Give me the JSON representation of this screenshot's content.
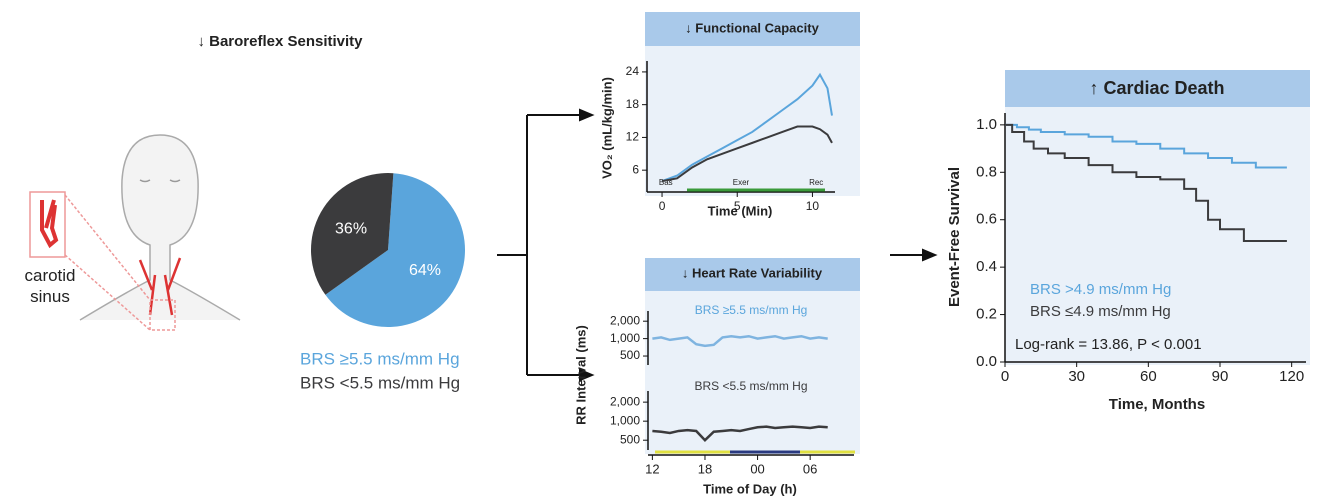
{
  "header": {
    "title": "↓ Baroreflex Sensitivity"
  },
  "illustration": {
    "label": "carotid sinus"
  },
  "chart_data": [
    {
      "type": "pie",
      "categories": [
        "BRS ≥5.5 ms/mm Hg",
        "BRS <5.5 ms/mm Hg"
      ],
      "values": [
        64,
        36
      ],
      "value_labels": [
        "64%",
        "36%"
      ],
      "colors": [
        "#5aa5dc",
        "#3b3b3d"
      ]
    },
    {
      "type": "line",
      "title": "↓ Functional Capacity",
      "x_label": "Time (Min)",
      "y_label": "VO₂ (mL/kg/min)",
      "xlim": [
        -1,
        11.5
      ],
      "xticks": [
        0,
        5,
        10
      ],
      "ylim": [
        2,
        26
      ],
      "yticks": [
        6,
        12,
        18,
        24
      ],
      "phases": [
        "Bas",
        "Exer",
        "Rec"
      ],
      "series": [
        {
          "color": "#5aa5dc",
          "x": [
            0,
            1,
            2,
            3,
            4,
            5,
            6,
            7,
            8,
            9,
            10,
            10.5,
            11,
            11.3
          ],
          "values": [
            4,
            5,
            7,
            8.5,
            10,
            11.5,
            13,
            15,
            17,
            19,
            21.5,
            23.5,
            21,
            16
          ]
        },
        {
          "color": "#3b3b3d",
          "x": [
            0,
            1,
            2,
            3,
            4,
            5,
            6,
            7,
            8,
            9,
            10,
            10.5,
            11,
            11.3
          ],
          "values": [
            4,
            4.5,
            6.5,
            8,
            9,
            10,
            11,
            12,
            13,
            14,
            14,
            13.5,
            12.5,
            11
          ]
        }
      ]
    },
    {
      "type": "hrv",
      "title": "↓ Heart Rate Variability",
      "x_label": "Time of Day (h)",
      "y_label": "RR Interval (ms)",
      "xlim": [
        -0.5,
        23
      ],
      "xticks": [
        {
          "value": 0,
          "label": "12"
        },
        {
          "value": 6,
          "label": "18"
        },
        {
          "value": 12,
          "label": "00"
        },
        {
          "value": 18,
          "label": "06"
        }
      ],
      "log_y": true,
      "panels": [
        {
          "annotation": "BRS ≥5.5 ms/mm Hg",
          "ylim": [
            350,
            3000
          ],
          "yticks": [
            {
              "value": 500,
              "label": "500"
            },
            {
              "value": 1000,
              "label": "1,000"
            },
            {
              "value": 2000,
              "label": "2,000"
            }
          ],
          "color": "#7fb4e0",
          "label_color": "#5aa5dc",
          "x": [
            0,
            1,
            2,
            3,
            4,
            5,
            6,
            7,
            8,
            9,
            10,
            11,
            12,
            13,
            14,
            15,
            16,
            17,
            18,
            19,
            20
          ],
          "values": [
            1000,
            1050,
            950,
            1000,
            1050,
            800,
            750,
            780,
            1050,
            1100,
            1050,
            1100,
            1000,
            1050,
            1100,
            1000,
            1050,
            1100,
            1000,
            1050,
            1000
          ]
        },
        {
          "annotation": "BRS <5.5 ms/mm Hg",
          "ylim": [
            350,
            3000
          ],
          "yticks": [
            {
              "value": 500,
              "label": "500"
            },
            {
              "value": 1000,
              "label": "1,000"
            },
            {
              "value": 2000,
              "label": "2,000"
            }
          ],
          "color": "#3b3b3d",
          "label_color": "#3b3b3d",
          "x": [
            0,
            1,
            2,
            3,
            4,
            5,
            6,
            7,
            8,
            9,
            10,
            11,
            12,
            13,
            14,
            15,
            16,
            17,
            18,
            19,
            20
          ],
          "values": [
            700,
            680,
            650,
            700,
            720,
            700,
            500,
            680,
            700,
            720,
            700,
            750,
            800,
            820,
            780,
            800,
            820,
            800,
            780,
            820,
            800
          ]
        }
      ]
    },
    {
      "type": "step",
      "title": "↑ Cardiac Death",
      "x_label": "Time, Months",
      "y_label": "Event-Free Survival",
      "annotation": "Log-rank = 13.86, P < 0.001",
      "xlim": [
        0,
        126
      ],
      "xticks": [
        0,
        30,
        60,
        90,
        120
      ],
      "ylim": [
        0,
        1.05
      ],
      "yticks": [
        {
          "value": 0,
          "label": "0.0"
        },
        {
          "value": 0.2,
          "label": "0.2"
        },
        {
          "value": 0.4,
          "label": "0.4"
        },
        {
          "value": 0.6,
          "label": "0.6"
        },
        {
          "value": 0.8,
          "label": "0.8"
        },
        {
          "value": 1,
          "label": "1.0"
        }
      ],
      "series": [
        {
          "name": "BRS >4.9 ms/mm Hg",
          "color": "#5aa5dc",
          "x": [
            0,
            5,
            10,
            15,
            25,
            35,
            45,
            55,
            65,
            75,
            85,
            95,
            105,
            118
          ],
          "values": [
            1,
            0.99,
            0.98,
            0.97,
            0.96,
            0.95,
            0.93,
            0.92,
            0.9,
            0.88,
            0.86,
            0.84,
            0.82,
            0.82
          ]
        },
        {
          "name": "BRS ≤4.9 ms/mm Hg",
          "color": "#3b3b3d",
          "x": [
            0,
            3,
            8,
            12,
            18,
            25,
            35,
            45,
            55,
            65,
            75,
            80,
            85,
            90,
            100,
            118
          ],
          "values": [
            1,
            0.97,
            0.93,
            0.9,
            0.88,
            0.86,
            0.83,
            0.8,
            0.78,
            0.77,
            0.73,
            0.68,
            0.6,
            0.56,
            0.51,
            0.51
          ]
        }
      ]
    }
  ]
}
